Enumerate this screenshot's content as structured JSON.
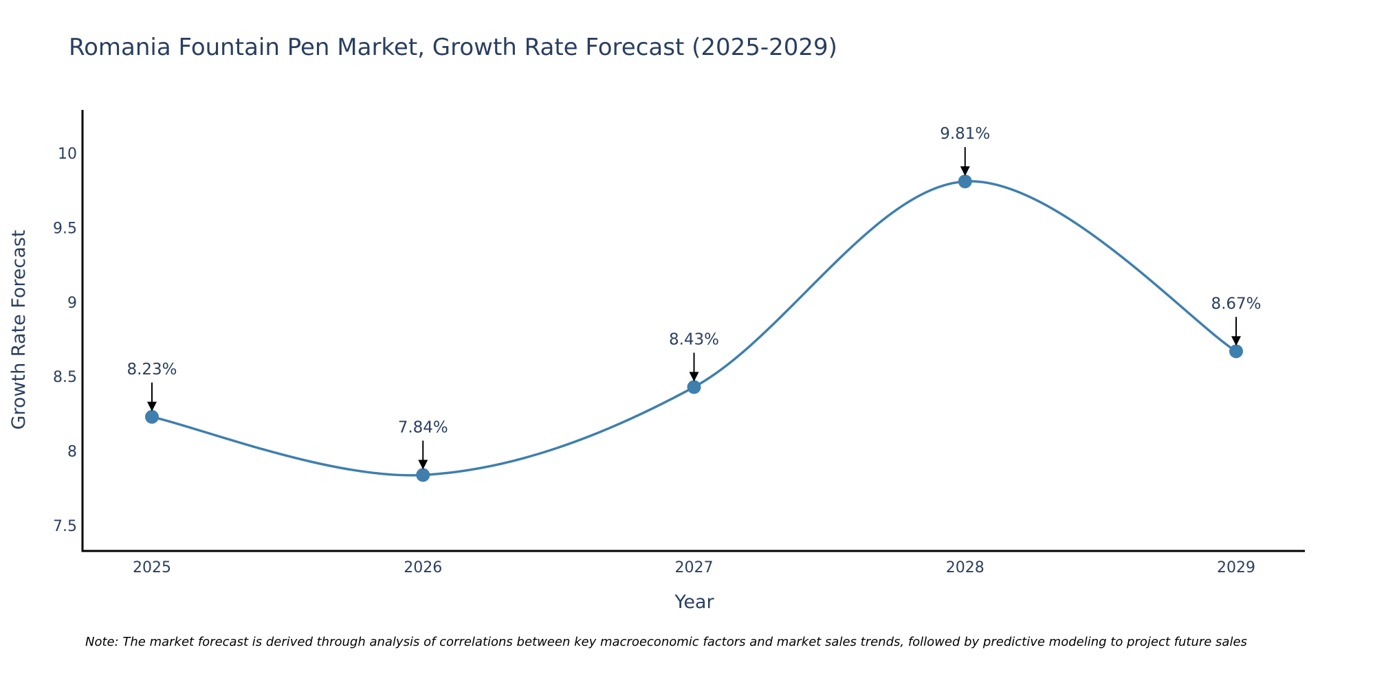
{
  "chart_data": {
    "type": "line",
    "title": "Romania Fountain Pen Market, Growth Rate Forecast (2025-2029)",
    "xlabel": "Year",
    "ylabel": "Growth Rate Forecast",
    "categories": [
      "2025",
      "2026",
      "2027",
      "2028",
      "2029"
    ],
    "values": [
      8.23,
      7.84,
      8.43,
      9.81,
      8.67
    ],
    "data_labels": [
      "8.23%",
      "7.84%",
      "8.43%",
      "9.81%",
      "8.67%"
    ],
    "ylim": [
      7.33,
      10.29
    ],
    "yticks": [
      7.5,
      8,
      8.5,
      9,
      9.5,
      10
    ],
    "ytick_labels": [
      "7.5",
      "8",
      "8.5",
      "9",
      "9.5",
      "10"
    ],
    "line_shape": "spline",
    "grid": false,
    "line_color": "#3f7fad",
    "marker_color": "#3f7fad",
    "note": "Note: The market forecast is derived through analysis of correlations between key macroeconomic factors and market sales trends, followed by predictive modeling to project future sales"
  }
}
